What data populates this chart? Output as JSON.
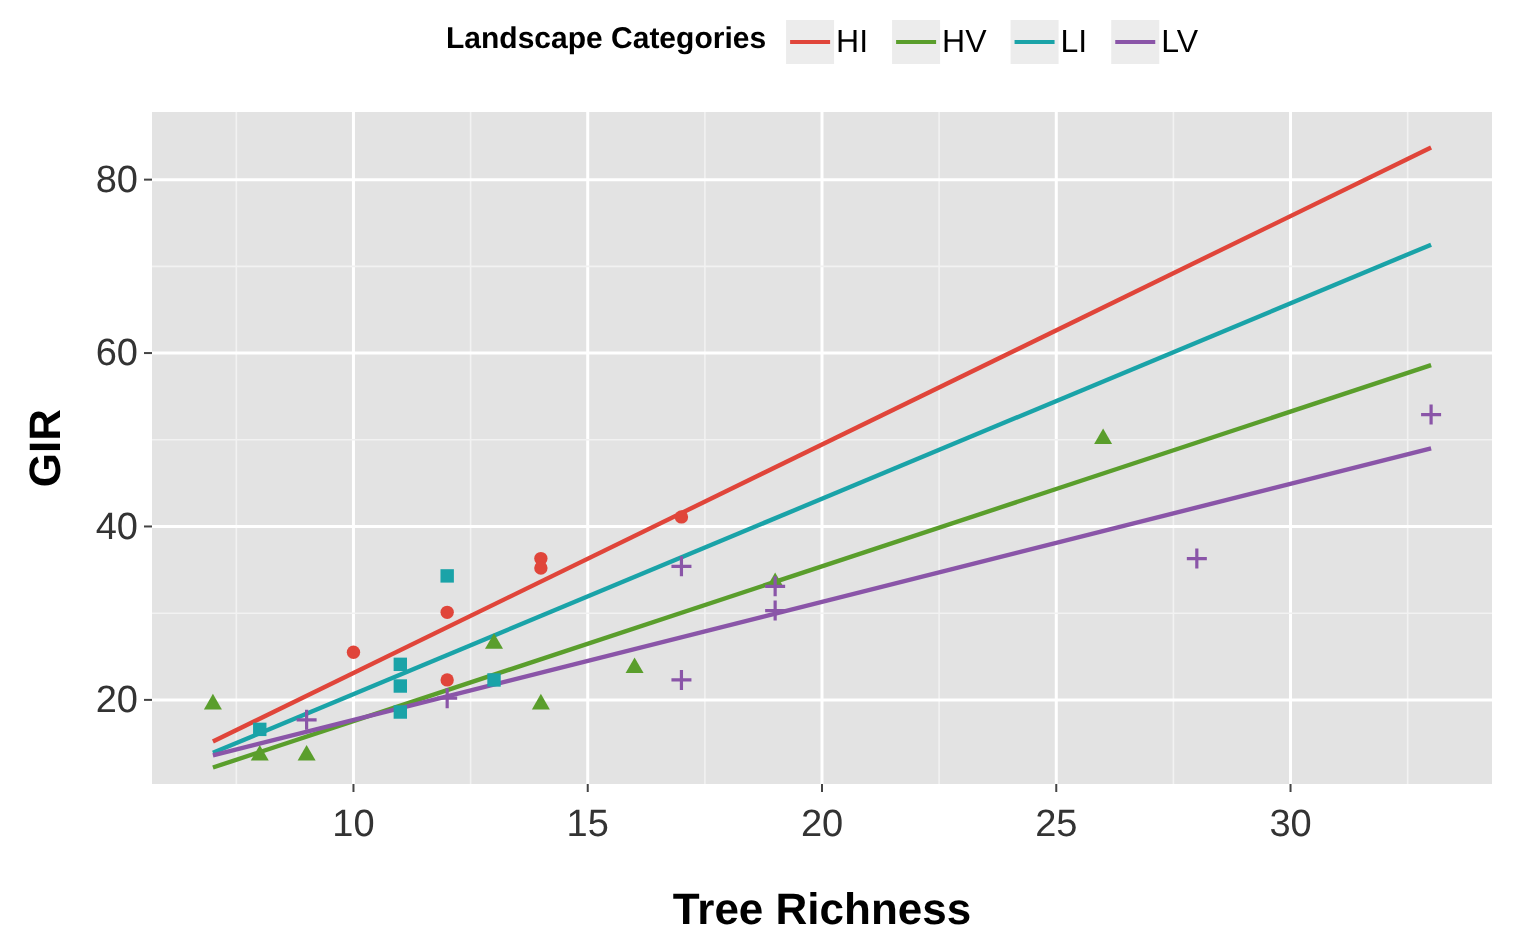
{
  "chart_data": {
    "type": "scatter",
    "xlabel": "Tree Richness",
    "ylabel": "GIR",
    "legend_title": "Landscape Categories",
    "legend": "top",
    "grid": true,
    "xlim": [
      5.7,
      34.3
    ],
    "ylim": [
      10.3,
      87.8
    ],
    "xticks": [
      10,
      15,
      20,
      25,
      30
    ],
    "yticks": [
      20,
      40,
      60,
      80
    ],
    "series": [
      {
        "marker": "circle",
        "color": "#e0453a",
        "x": [
          10,
          12,
          12,
          14,
          14,
          17
        ],
        "values": [
          25.5,
          30.1,
          22.3,
          36.3,
          35.2,
          41.1
        ]
      },
      {
        "marker": "triangle",
        "color": "#5a9e2c",
        "x": [
          7,
          8,
          9,
          13,
          14,
          16,
          19,
          26
        ],
        "values": [
          19.5,
          13.6,
          13.6,
          26.5,
          19.5,
          23.7,
          33.5,
          50.1
        ]
      },
      {
        "marker": "square",
        "color": "#1aa3a8",
        "x": [
          8,
          11,
          11,
          11,
          12,
          13
        ],
        "values": [
          16.6,
          24.1,
          21.6,
          18.6,
          34.3,
          22.3
        ]
      },
      {
        "marker": "cross",
        "color": "#8a55a8",
        "x": [
          9,
          12,
          17,
          17,
          19,
          19,
          28,
          33
        ],
        "values": [
          17.7,
          20.2,
          35.4,
          22.3,
          33.1,
          30.3,
          36.3,
          52.9
        ]
      },
      {
        "type": "line",
        "name": "HI",
        "color": "#e0453a",
        "x": [
          7,
          33
        ],
        "values": [
          15.2,
          83.7
        ]
      },
      {
        "type": "line",
        "name": "HV",
        "color": "#5a9e2c",
        "x": [
          7,
          33
        ],
        "values": [
          12.2,
          58.6
        ]
      },
      {
        "type": "line",
        "name": "LI",
        "color": "#1aa3a8",
        "x": [
          7,
          33
        ],
        "values": [
          13.9,
          72.5
        ]
      },
      {
        "type": "line",
        "name": "LV",
        "color": "#8a55a8",
        "x": [
          7,
          33
        ],
        "values": [
          13.6,
          49.0
        ]
      }
    ]
  }
}
